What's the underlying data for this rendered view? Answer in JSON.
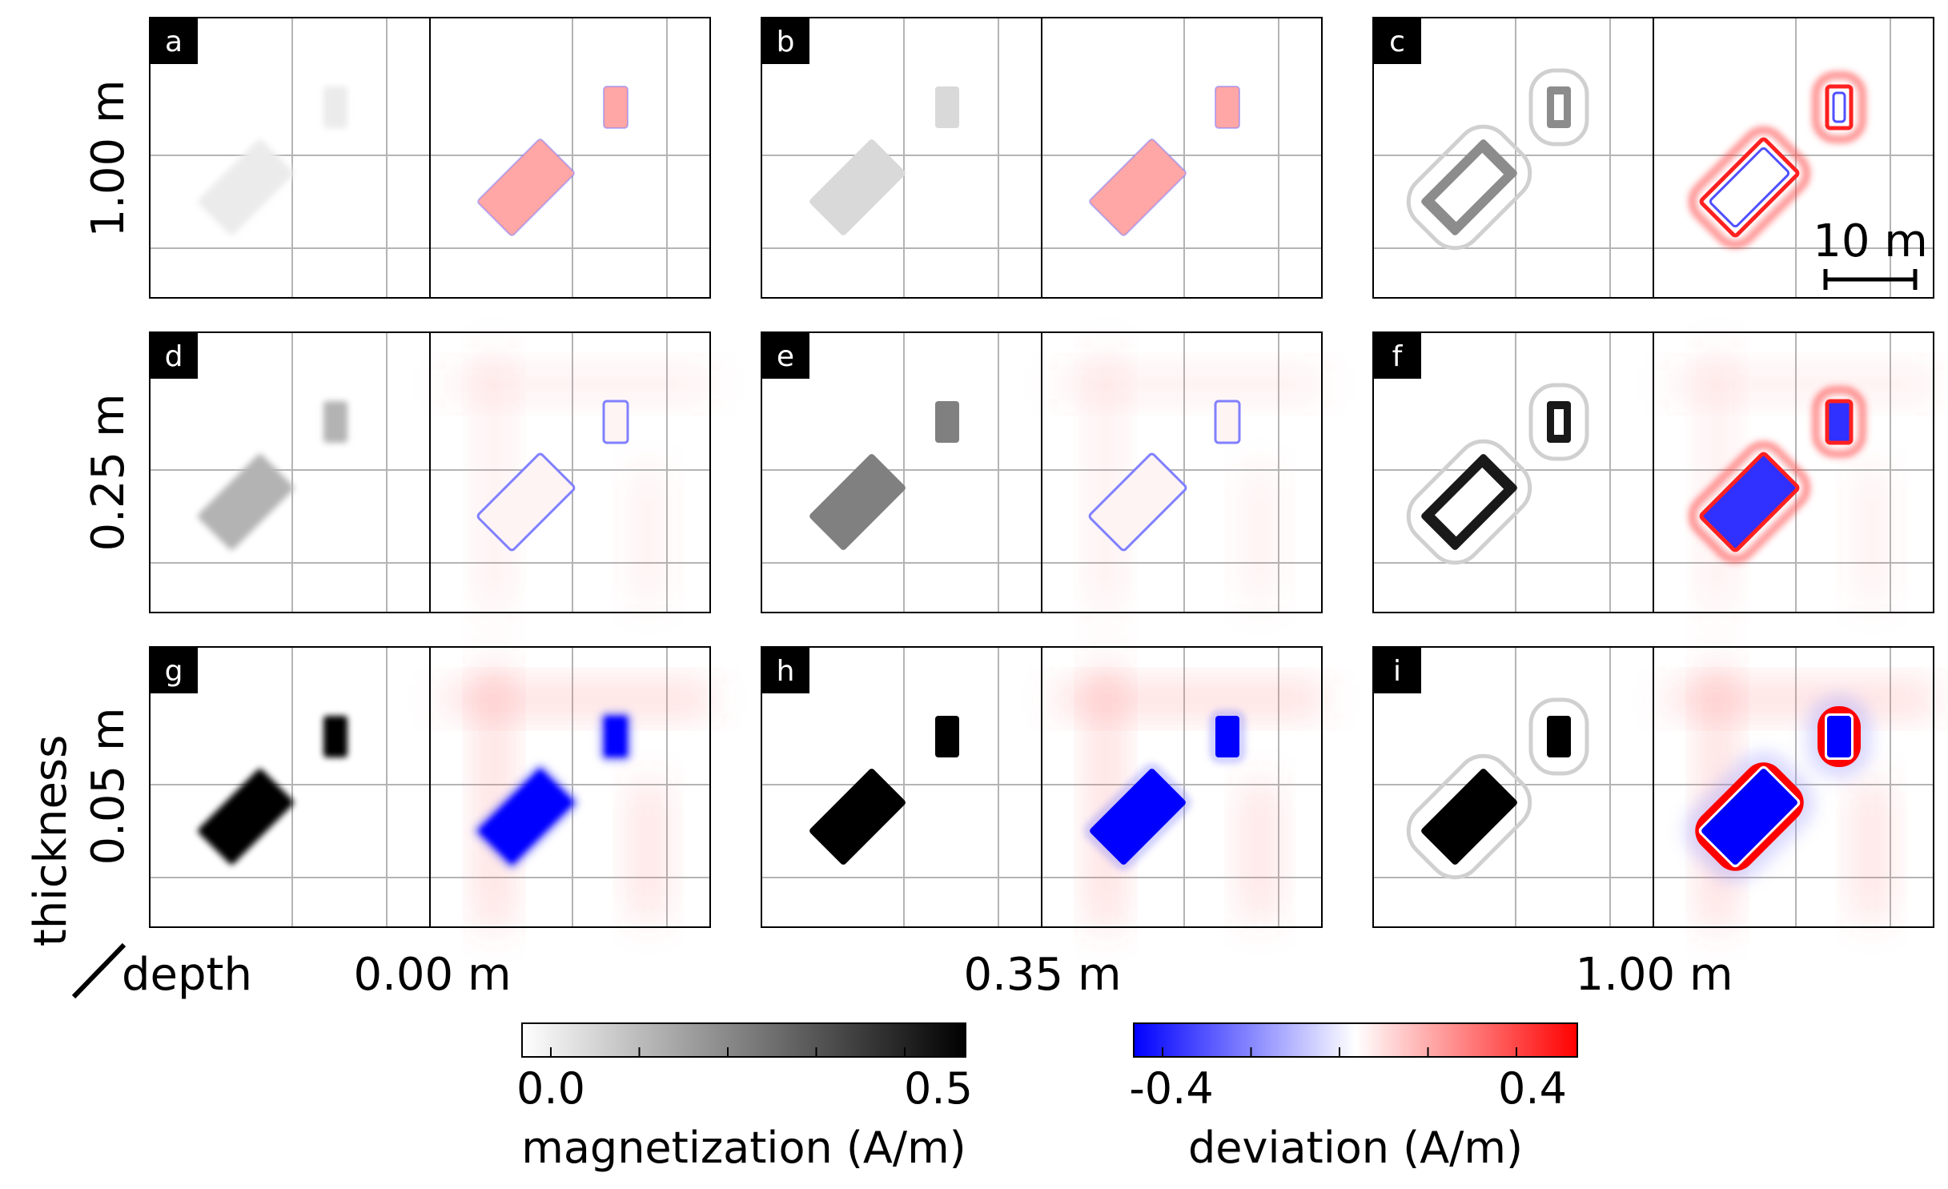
{
  "figure": {
    "row_labels": [
      "1.00 m",
      "0.25 m",
      "0.05 m"
    ],
    "corner": {
      "thickness_label": "thickness",
      "depth_label": "depth"
    },
    "depth_labels": [
      "0.00 m",
      "0.35 m",
      "1.00 m"
    ],
    "scale_bar_label": "10 m",
    "panels": [
      {
        "letter": "a",
        "thickness_m": 1.0,
        "depth_m": 0.0,
        "mag_level": 0.08,
        "dev_kind": "red_fill",
        "dev_level": 0.35
      },
      {
        "letter": "b",
        "thickness_m": 1.0,
        "depth_m": 0.35,
        "mag_level": 0.15,
        "dev_kind": "red_fill",
        "dev_level": 0.35
      },
      {
        "letter": "c",
        "thickness_m": 1.0,
        "depth_m": 1.0,
        "mag_level": 0.45,
        "dev_kind": "ring",
        "dev_level": 0.5
      },
      {
        "letter": "d",
        "thickness_m": 0.25,
        "depth_m": 0.0,
        "mag_level": 0.3,
        "dev_kind": "outline",
        "dev_level": 0.25
      },
      {
        "letter": "e",
        "thickness_m": 0.25,
        "depth_m": 0.35,
        "mag_level": 0.5,
        "dev_kind": "outline",
        "dev_level": 0.25
      },
      {
        "letter": "f",
        "thickness_m": 0.25,
        "depth_m": 1.0,
        "mag_level": 0.9,
        "dev_kind": "ring_blue",
        "dev_level": 0.6
      },
      {
        "letter": "g",
        "thickness_m": 0.05,
        "depth_m": 0.0,
        "mag_level": 1.0,
        "dev_kind": "blue_fill",
        "dev_level": 1.0
      },
      {
        "letter": "h",
        "thickness_m": 0.05,
        "depth_m": 0.35,
        "mag_level": 1.0,
        "dev_kind": "blue_fill",
        "dev_level": 1.0
      },
      {
        "letter": "i",
        "thickness_m": 0.05,
        "depth_m": 1.0,
        "mag_level": 1.0,
        "dev_kind": "blue_red_halo",
        "dev_level": 1.0
      }
    ]
  },
  "colorbars": {
    "magnetization": {
      "label": "magnetization (A/m)",
      "tick_min": "0.0",
      "tick_max": "0.5",
      "min": 0.0,
      "max": 0.5,
      "colors": [
        "#ffffff",
        "#000000"
      ]
    },
    "deviation": {
      "label": "deviation (A/m)",
      "tick_min": "-0.4",
      "tick_max": "0.4",
      "min": -0.5,
      "max": 0.5,
      "colors": [
        "#0000ff",
        "#ffffff",
        "#ff0000"
      ]
    }
  }
}
